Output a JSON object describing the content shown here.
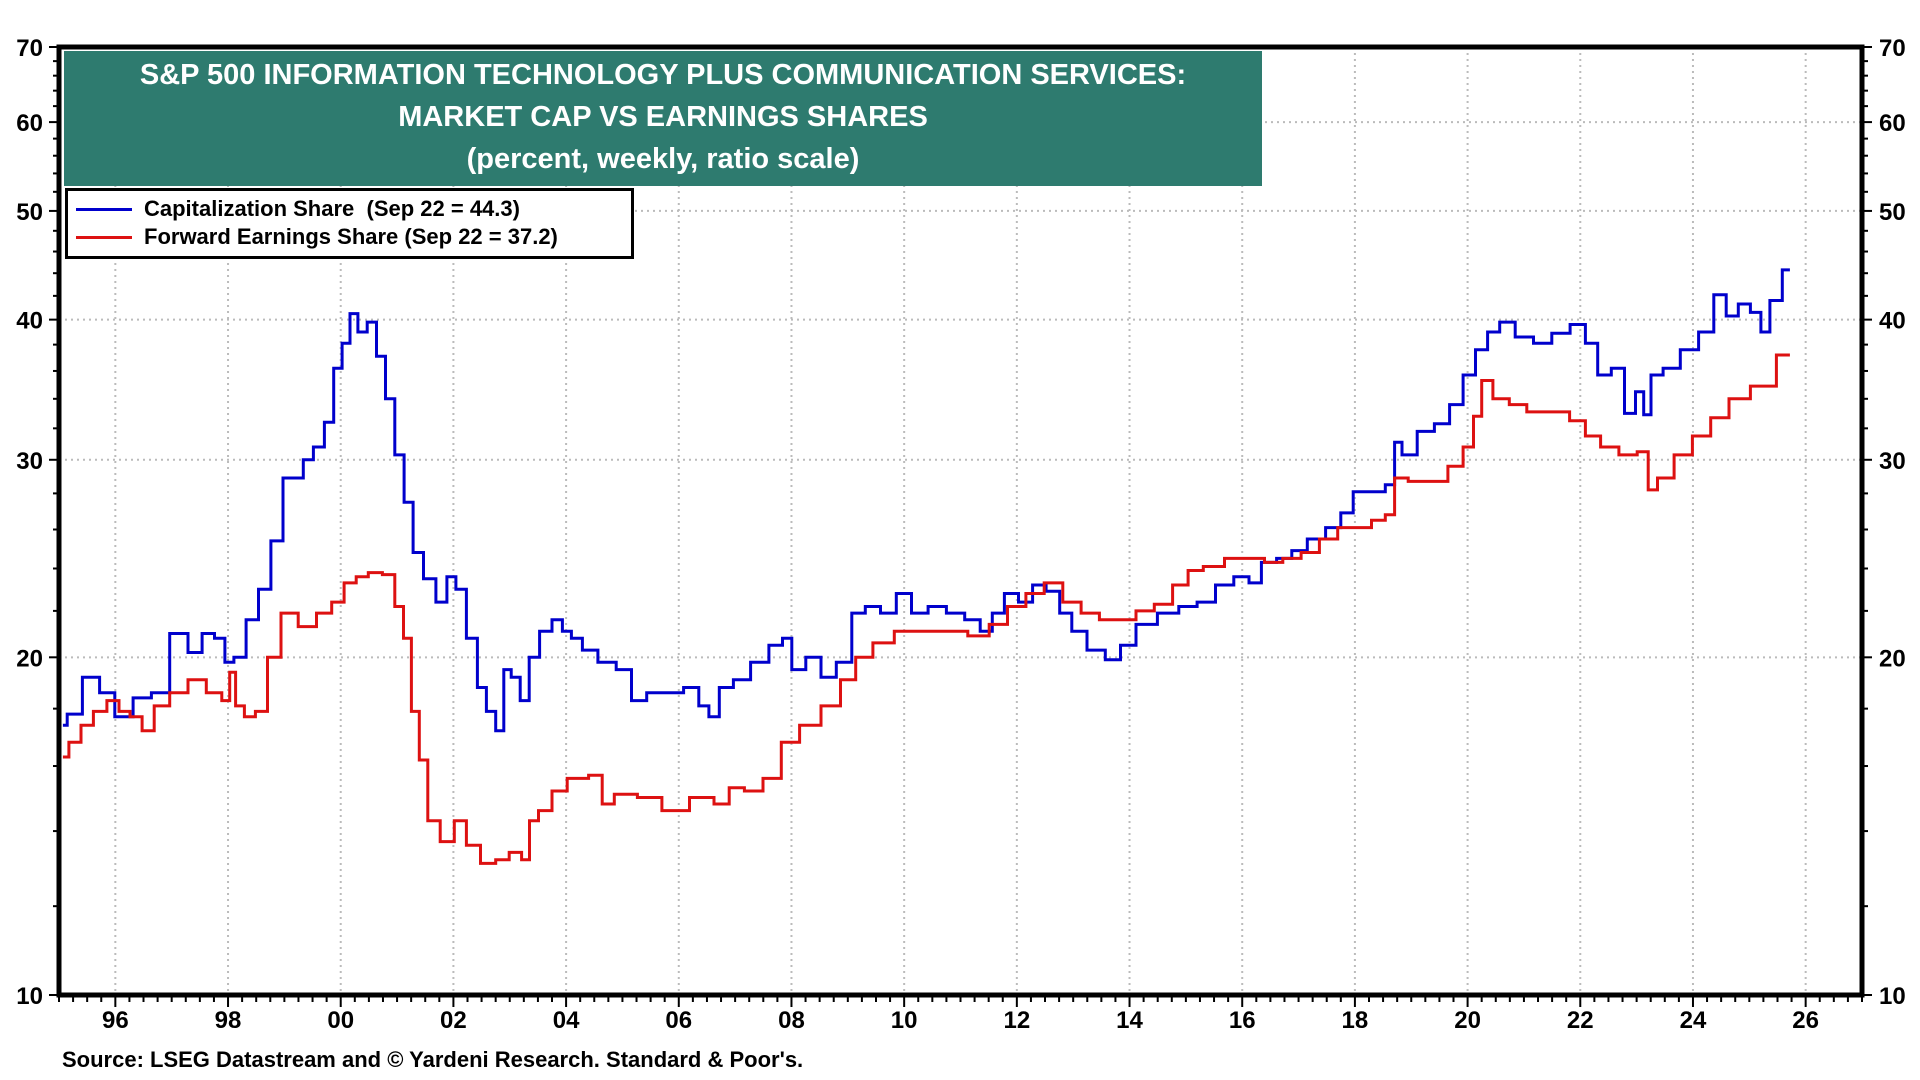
{
  "chart_data": {
    "type": "line",
    "title": "S&P 500 INFORMATION TECHNOLOGY PLUS COMMUNICATION SERVICES:",
    "subtitle": "MARKET CAP VS EARNINGS SHARES",
    "subtitle2": "(percent, weekly, ratio scale)",
    "xlabel": "",
    "ylabel": "",
    "yscale": "log",
    "ylim": [
      10,
      70
    ],
    "xlim": [
      1995.0,
      2027.0
    ],
    "grid": true,
    "legend_position": "top-left",
    "y_ticks": [
      10,
      20,
      30,
      40,
      50,
      60,
      70
    ],
    "y_tick_labels": [
      "10",
      "20",
      "30",
      "40",
      "50",
      "60",
      "70"
    ],
    "x_ticks": [
      1996,
      1998,
      2000,
      2002,
      2004,
      2006,
      2008,
      2010,
      2012,
      2014,
      2016,
      2018,
      2020,
      2022,
      2024,
      2026
    ],
    "x_tick_labels": [
      "96",
      "98",
      "00",
      "02",
      "04",
      "06",
      "08",
      "10",
      "12",
      "14",
      "16",
      "18",
      "20",
      "22",
      "24",
      "26"
    ],
    "series": [
      {
        "name": "Capitalization Share",
        "legend_label": "Capitalization Share  (Sep 22 = 44.3)",
        "color": "#0000cc",
        "x": [
          1995.07,
          1995.22,
          1995.61,
          1995.83,
          1996.15,
          1996.48,
          1996.8,
          1997.13,
          1997.45,
          1997.63,
          1997.89,
          1998.0,
          1998.21,
          1998.43,
          1998.65,
          1998.87,
          1999.08,
          1999.26,
          1999.41,
          1999.62,
          1999.8,
          1999.95,
          2000.1,
          2000.23,
          2000.38,
          2000.56,
          2000.71,
          2000.88,
          2001.04,
          2001.21,
          2001.36,
          2001.58,
          2001.8,
          2001.97,
          2002.12,
          2002.34,
          2002.51,
          2002.66,
          2002.84,
          2002.95,
          2003.1,
          2003.27,
          2003.42,
          2003.64,
          2003.86,
          2004.01,
          2004.18,
          2004.4,
          2004.73,
          2005.05,
          2005.27,
          2005.59,
          2005.92,
          2006.25,
          2006.46,
          2006.61,
          2006.83,
          2007.11,
          2007.44,
          2007.76,
          2007.92,
          2008.09,
          2008.42,
          2008.63,
          2008.96,
          2009.18,
          2009.44,
          2009.72,
          2010.0,
          2010.26,
          2010.59,
          2010.91,
          2011.24,
          2011.46,
          2011.67,
          2011.89,
          2012.17,
          2012.39,
          2012.65,
          2012.87,
          2013.08,
          2013.41,
          2013.73,
          2013.95,
          2014.28,
          2014.71,
          2015.04,
          2015.36,
          2015.69,
          2016.01,
          2016.23,
          2016.45,
          2016.77,
          2016.99,
          2017.32,
          2017.64,
          2017.86,
          2018.08,
          2018.4,
          2018.68,
          2018.73,
          2018.94,
          2019.27,
          2019.55,
          2019.81,
          2020.03,
          2020.25,
          2020.46,
          2020.68,
          2021.01,
          2021.33,
          2021.66,
          2021.98,
          2022.2,
          2022.42,
          2022.68,
          2022.89,
          2023.07,
          2023.18,
          2023.33,
          2023.61,
          2023.94,
          2024.26,
          2024.48,
          2024.7,
          2024.91,
          2025.13,
          2025.28,
          2025.45,
          2025.72
        ],
        "values": [
          17.4,
          17.8,
          19.2,
          18.6,
          17.7,
          18.4,
          18.6,
          21.0,
          20.2,
          21.0,
          20.8,
          19.8,
          20.0,
          21.6,
          23.0,
          25.4,
          28.9,
          28.9,
          30.0,
          30.8,
          32.4,
          36.2,
          38.1,
          40.5,
          39.0,
          39.8,
          37.1,
          34.0,
          30.3,
          27.5,
          24.8,
          23.5,
          22.4,
          23.6,
          23.0,
          20.8,
          18.8,
          17.9,
          17.2,
          19.5,
          19.2,
          18.3,
          20.0,
          21.1,
          21.6,
          21.1,
          20.8,
          20.3,
          19.8,
          19.5,
          18.3,
          18.6,
          18.6,
          18.8,
          18.1,
          17.7,
          18.8,
          19.1,
          19.8,
          20.5,
          20.8,
          19.5,
          20.0,
          19.2,
          19.8,
          21.9,
          22.2,
          21.9,
          22.8,
          21.9,
          22.2,
          21.9,
          21.6,
          21.1,
          21.9,
          22.8,
          22.4,
          23.2,
          22.9,
          21.9,
          21.1,
          20.3,
          19.9,
          20.5,
          21.4,
          21.9,
          22.2,
          22.4,
          23.2,
          23.6,
          23.3,
          24.3,
          24.5,
          24.9,
          25.5,
          26.1,
          26.9,
          28.1,
          28.1,
          28.5,
          31.1,
          30.3,
          31.8,
          32.3,
          33.6,
          35.7,
          37.6,
          39.0,
          39.8,
          38.6,
          38.1,
          38.9,
          39.6,
          38.1,
          35.7,
          36.2,
          33.0,
          34.5,
          32.9,
          35.7,
          36.2,
          37.6,
          39.0,
          42.1,
          40.3,
          41.3,
          40.6,
          39.0,
          41.6,
          44.3
        ]
      },
      {
        "name": "Forward Earnings Share",
        "legend_label": "Forward Earnings Share (Sep 22 = 37.2)",
        "color": "#dd1111",
        "x": [
          1995.07,
          1995.28,
          1995.5,
          1995.72,
          1995.98,
          1996.15,
          1996.37,
          1996.58,
          1996.8,
          1997.13,
          1997.45,
          1997.78,
          1998.0,
          1998.06,
          1998.21,
          1998.37,
          1998.6,
          1998.8,
          1999.08,
          1999.41,
          1999.73,
          1999.95,
          2000.17,
          2000.38,
          2000.6,
          2000.88,
          2001.04,
          2001.19,
          2001.32,
          2001.47,
          2001.62,
          2001.91,
          2002.12,
          2002.34,
          2002.62,
          2002.88,
          2003.1,
          2003.32,
          2003.38,
          2003.64,
          2003.86,
          2004.18,
          2004.62,
          2004.66,
          2005.05,
          2005.48,
          2005.92,
          2006.46,
          2006.79,
          2007.0,
          2007.33,
          2007.66,
          2007.98,
          2008.31,
          2008.74,
          2009.0,
          2009.28,
          2009.61,
          2010.04,
          2010.48,
          2010.91,
          2011.35,
          2011.67,
          2012.0,
          2012.32,
          2012.65,
          2012.98,
          2013.3,
          2013.63,
          2013.95,
          2014.28,
          2014.6,
          2014.93,
          2015.15,
          2015.47,
          2015.9,
          2016.23,
          2016.56,
          2016.88,
          2017.21,
          2017.53,
          2017.86,
          2018.19,
          2018.4,
          2018.68,
          2018.73,
          2019.16,
          2019.49,
          2019.81,
          2020.03,
          2020.18,
          2020.32,
          2020.58,
          2020.9,
          2021.2,
          2021.64,
          2021.98,
          2022.2,
          2022.52,
          2022.85,
          2023.17,
          2023.24,
          2023.5,
          2023.83,
          2024.15,
          2024.48,
          2024.8,
          2025.24,
          2025.72
        ],
        "values": [
          16.3,
          16.8,
          17.4,
          17.9,
          18.3,
          17.9,
          17.7,
          17.2,
          18.1,
          18.6,
          19.1,
          18.6,
          18.3,
          19.4,
          18.1,
          17.7,
          17.9,
          20.0,
          21.9,
          21.3,
          21.9,
          22.4,
          23.3,
          23.6,
          23.8,
          23.7,
          22.2,
          20.8,
          17.9,
          16.2,
          14.3,
          13.7,
          14.3,
          13.6,
          13.1,
          13.2,
          13.4,
          13.2,
          14.3,
          14.6,
          15.2,
          15.6,
          15.7,
          14.8,
          15.1,
          15.0,
          14.6,
          15.0,
          14.8,
          15.3,
          15.2,
          15.6,
          16.8,
          17.4,
          18.1,
          19.1,
          20.0,
          20.6,
          21.1,
          21.1,
          21.1,
          20.9,
          21.4,
          22.2,
          22.8,
          23.3,
          22.4,
          21.9,
          21.6,
          21.6,
          22.0,
          22.3,
          23.2,
          23.9,
          24.1,
          24.5,
          24.5,
          24.3,
          24.5,
          24.8,
          25.5,
          26.1,
          26.1,
          26.5,
          26.8,
          28.9,
          28.7,
          28.7,
          29.6,
          30.8,
          32.8,
          35.3,
          34.0,
          33.6,
          33.1,
          33.1,
          32.5,
          31.5,
          30.8,
          30.3,
          30.5,
          28.2,
          28.9,
          30.3,
          31.5,
          32.7,
          34.0,
          34.9,
          37.2
        ]
      }
    ],
    "source": "Source: LSEG Datastream and © Yardeni Research. Standard & Poor's."
  },
  "colors": {
    "title_background": "#2e7b6f",
    "title_text": "#ffffff",
    "grid": "#bbbbbb",
    "axis": "#000000"
  }
}
